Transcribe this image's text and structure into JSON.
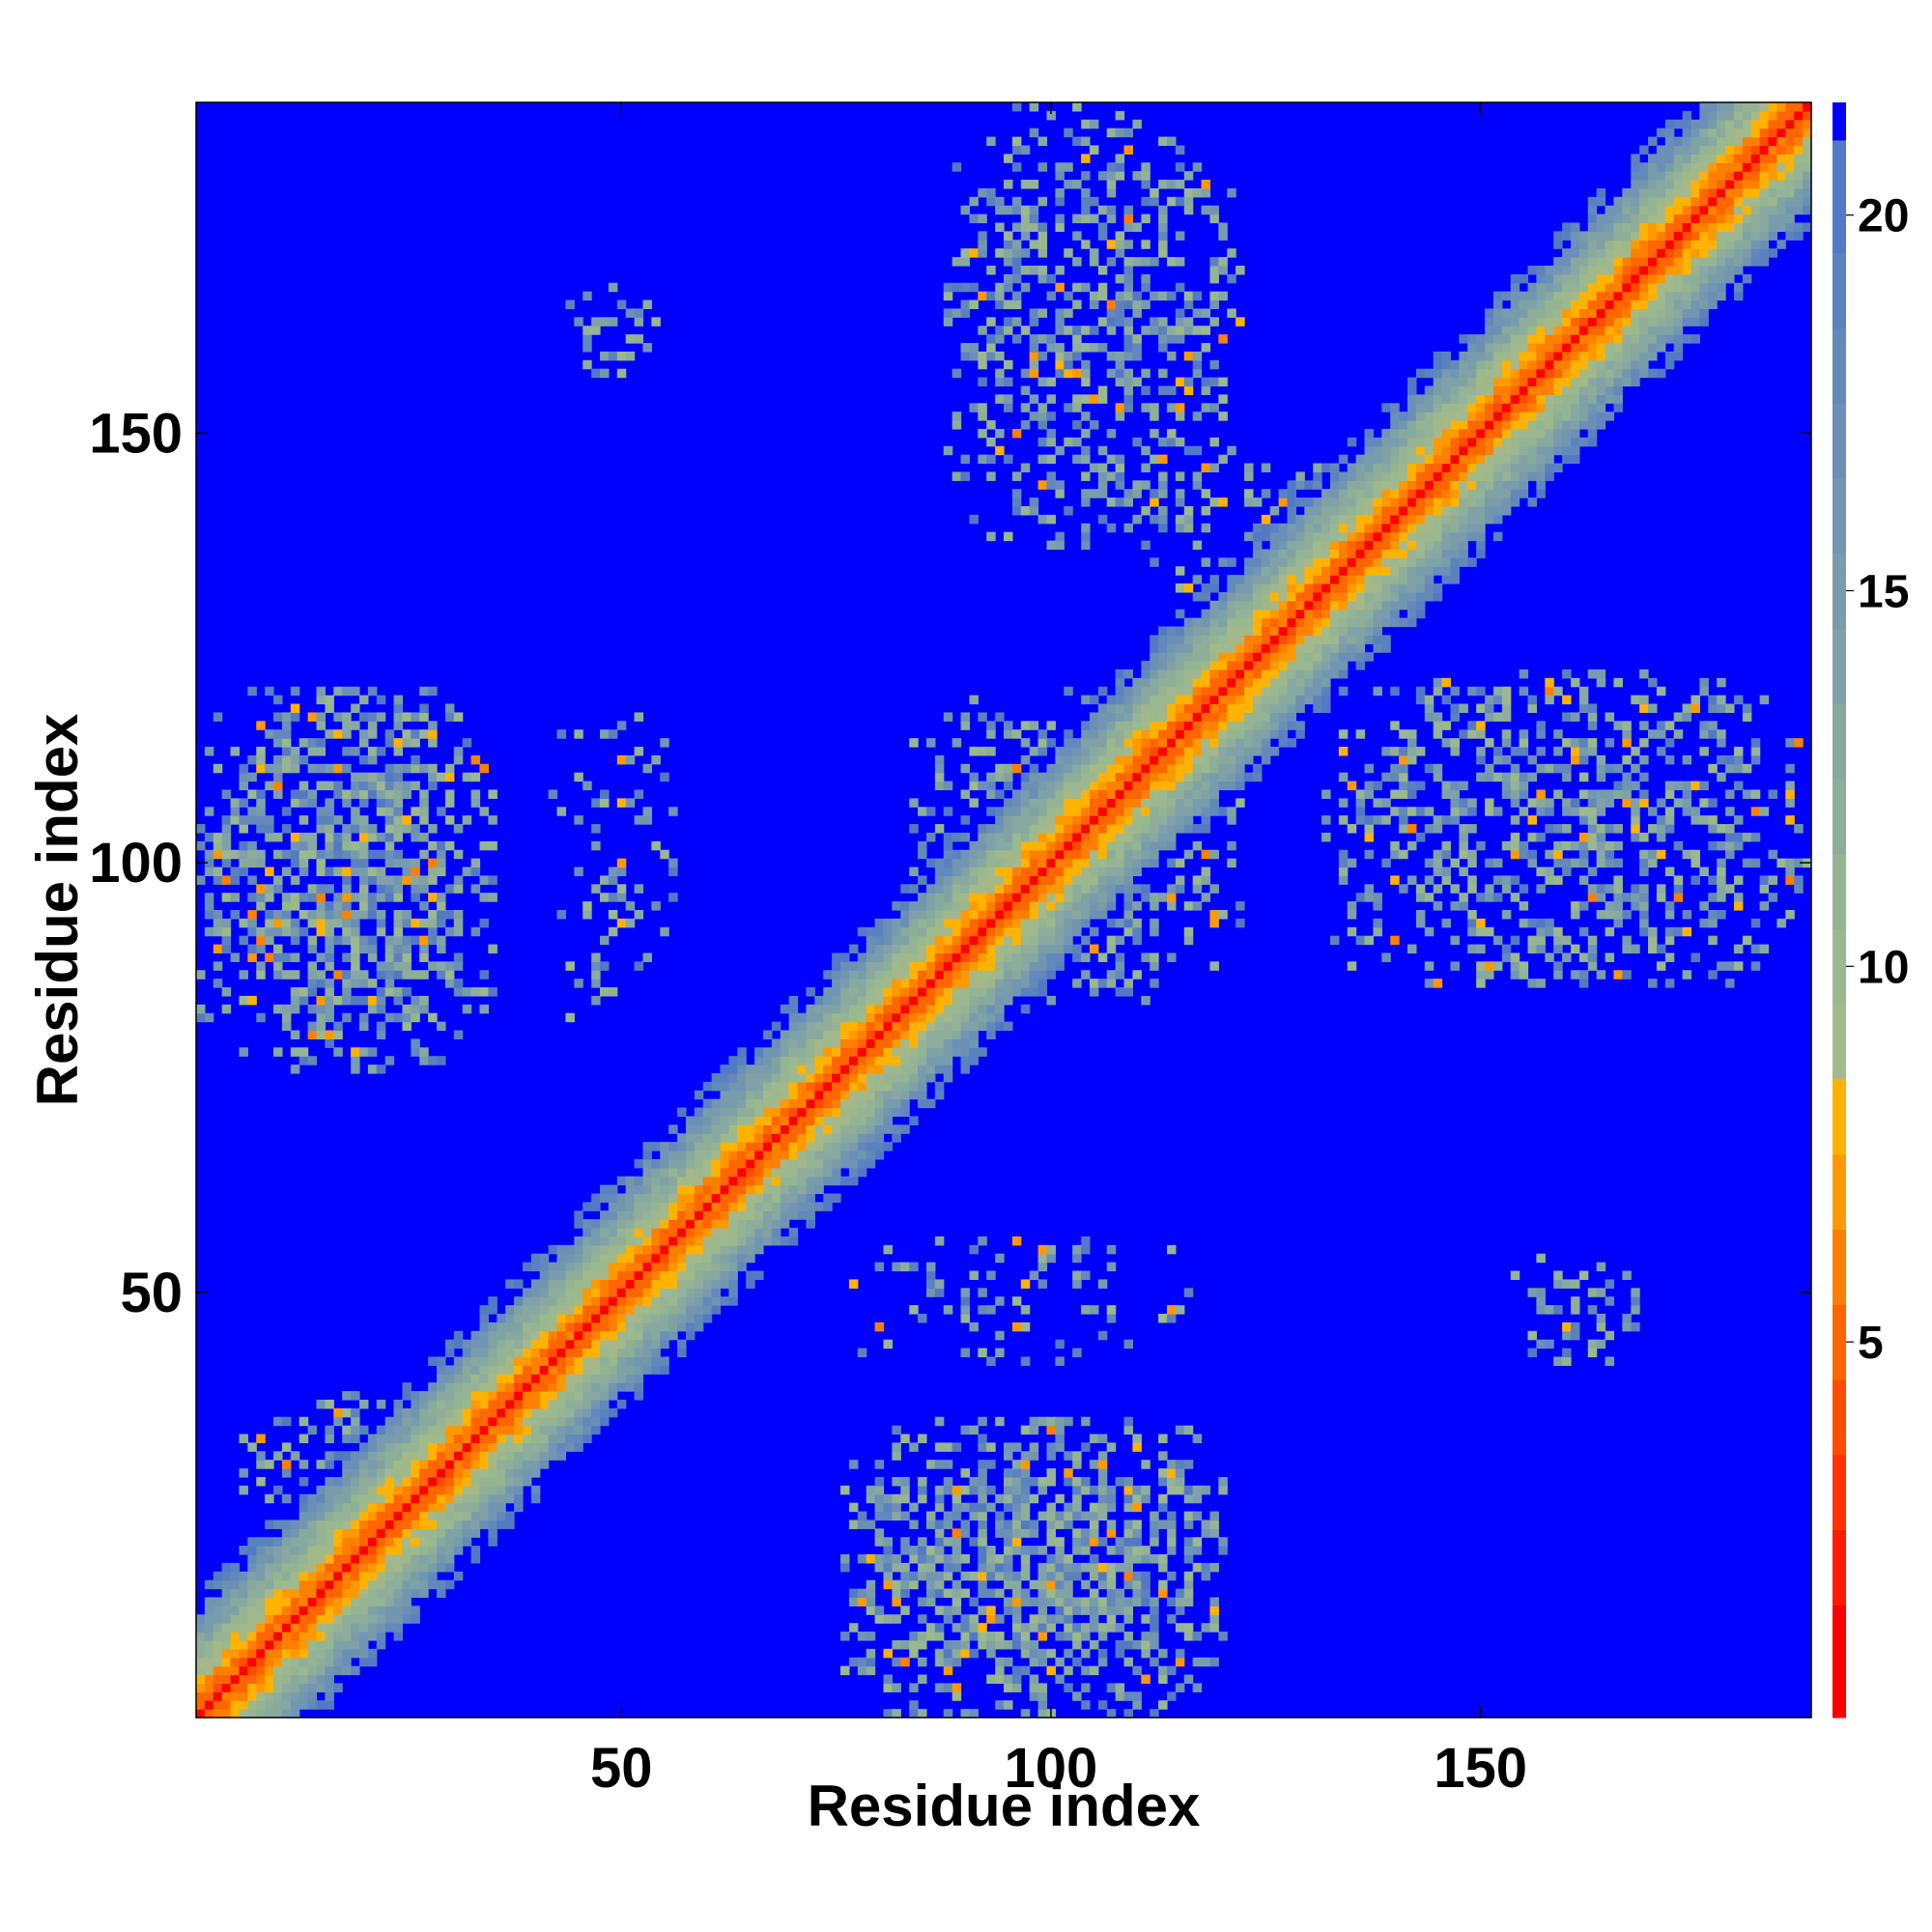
{
  "chart_data": {
    "type": "heatmap",
    "title": "",
    "xlabel": "Residue index",
    "ylabel": "Residue index",
    "n_residues": 188,
    "xlim": [
      1,
      188
    ],
    "ylim": [
      1,
      188
    ],
    "x_ticks": [
      50,
      100,
      150
    ],
    "y_ticks": [
      50,
      100,
      150
    ],
    "colorbar": {
      "ticks": [
        5,
        10,
        15,
        20
      ],
      "range": [
        0,
        21.5
      ],
      "cutoff": 21,
      "levels": [
        {
          "max": 1.5,
          "color": "#ff0000"
        },
        {
          "max": 2.5,
          "color": "#ff1a00"
        },
        {
          "max": 3.5,
          "color": "#ff3300"
        },
        {
          "max": 4.5,
          "color": "#ff4d00"
        },
        {
          "max": 5.5,
          "color": "#ff6600"
        },
        {
          "max": 6.5,
          "color": "#ff8000"
        },
        {
          "max": 7.5,
          "color": "#ff9900"
        },
        {
          "max": 8.5,
          "color": "#ffb300"
        },
        {
          "max": 9.5,
          "color": "#a4b98a"
        },
        {
          "max": 10.5,
          "color": "#9bb88f"
        },
        {
          "max": 11.5,
          "color": "#95b494"
        },
        {
          "max": 12.5,
          "color": "#8eae9a"
        },
        {
          "max": 13.5,
          "color": "#88a99f"
        },
        {
          "max": 14.5,
          "color": "#80a2a6"
        },
        {
          "max": 15.5,
          "color": "#799cac"
        },
        {
          "max": 16.5,
          "color": "#7296b1"
        },
        {
          "max": 17.5,
          "color": "#6b8fb6"
        },
        {
          "max": 18.5,
          "color": "#6388bb"
        },
        {
          "max": 19.5,
          "color": "#5c81bf"
        },
        {
          "max": 21.0,
          "color": "#5479c4"
        },
        {
          "max": 99,
          "color": "#0000ff"
        }
      ]
    },
    "diagonal": {
      "core_width": 2.5,
      "inner_width": 5,
      "band_halfwidth": 14
    },
    "contact_regions": [
      {
        "name": "block-a",
        "x": [
          1,
          35
        ],
        "y": [
          76,
          120
        ],
        "density": 0.65
      },
      {
        "name": "block-b",
        "x": [
          76,
          120
        ],
        "y": [
          1,
          35
        ],
        "density": 0.65
      },
      {
        "name": "block-c",
        "x": [
          88,
          122
        ],
        "y": [
          136,
          188
        ],
        "density": 0.45
      },
      {
        "name": "block-d",
        "x": [
          132,
          188
        ],
        "y": [
          86,
          122
        ],
        "density": 0.45
      },
      {
        "name": "block-e",
        "x": [
          84,
          122
        ],
        "y": [
          84,
          120
        ],
        "density": 0.5
      },
      {
        "name": "block-f",
        "x": [
          6,
          38
        ],
        "y": [
          22,
          38
        ],
        "density": 0.45
      },
      {
        "name": "block-g",
        "x": [
          42,
          56
        ],
        "y": [
          82,
          118
        ],
        "density": 0.18
      },
      {
        "name": "block-h",
        "x": [
          44,
          54
        ],
        "y": [
          156,
          168
        ],
        "density": 0.3
      },
      {
        "name": "block-i",
        "x": [
          76,
          116
        ],
        "y": [
          42,
          56
        ],
        "density": 0.18
      },
      {
        "name": "block-j",
        "x": [
          154,
          168
        ],
        "y": [
          42,
          54
        ],
        "density": 0.3
      },
      {
        "name": "block-k",
        "x": [
          112,
          140
        ],
        "y": [
          122,
          146
        ],
        "density": 0.35
      }
    ]
  }
}
